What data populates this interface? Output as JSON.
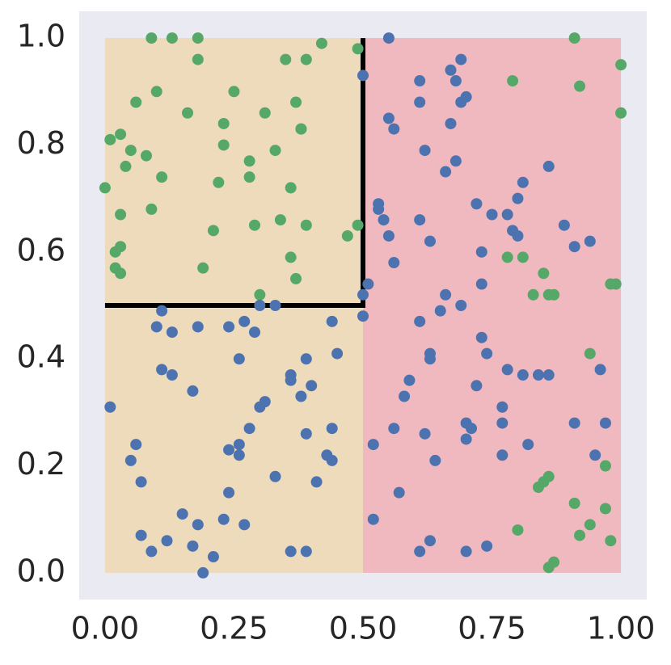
{
  "chart_data": {
    "type": "scatter",
    "xlim": [
      -0.05,
      1.05
    ],
    "ylim": [
      -0.05,
      1.05
    ],
    "xticks": [
      {
        "value": 0,
        "label": "0.00"
      },
      {
        "value": 0.25,
        "label": "0.25"
      },
      {
        "value": 0.5,
        "label": "0.50"
      },
      {
        "value": 0.75,
        "label": "0.75"
      },
      {
        "value": 1,
        "label": "1.00"
      }
    ],
    "yticks": [
      {
        "value": 0,
        "label": "0.0"
      },
      {
        "value": 0.2,
        "label": "0.2"
      },
      {
        "value": 0.4,
        "label": "0.4"
      },
      {
        "value": 0.6,
        "label": "0.6"
      },
      {
        "value": 0.8,
        "label": "0.8"
      },
      {
        "value": 1,
        "label": "1.0"
      }
    ],
    "grid": false,
    "axes_color": "#eaeaf2",
    "regions": [
      {
        "xlim": [
          0,
          0.5
        ],
        "ylim": [
          0,
          1
        ],
        "color": "#eedbbc"
      },
      {
        "xlim": [
          0.5,
          1
        ],
        "ylim": [
          0,
          1
        ],
        "color": "#efb9bf"
      }
    ],
    "boundary": {
      "x": [
        0,
        0.5,
        0.5
      ],
      "y": [
        0.5,
        0.5,
        1
      ],
      "color": "#000000"
    },
    "series": [
      {
        "color": "#55a868",
        "x": [
          0.09,
          0.13,
          0.18,
          0.18,
          0.35,
          0.39,
          0.42,
          0.49,
          0.1,
          0.06,
          0.25,
          0.16,
          0.31,
          0.37,
          0.23,
          0.38,
          0.38,
          0.01,
          0.03,
          0.05,
          0.08,
          0.23,
          0.28,
          0.33,
          0.04,
          0.11,
          0.22,
          0.28,
          0.36,
          0.0,
          0.03,
          0.09,
          0.21,
          0.29,
          0.34,
          0.39,
          0.47,
          0.49,
          0.03,
          0.02,
          0.36,
          0.37,
          0.19,
          0.02,
          0.03,
          0.3,
          0.91,
          1.0,
          0.92,
          1.0,
          0.79,
          0.78,
          0.81,
          0.85,
          0.83,
          0.86,
          0.87,
          0.99,
          0.98,
          0.94,
          0.97,
          0.85,
          0.86,
          0.84,
          0.91,
          0.97,
          0.94,
          0.92,
          0.8,
          0.98,
          0.87,
          0.86
        ],
        "y": [
          1.0,
          1.0,
          1.0,
          0.96,
          0.96,
          0.96,
          0.99,
          0.98,
          0.9,
          0.88,
          0.9,
          0.86,
          0.86,
          0.88,
          0.84,
          0.83,
          0.83,
          0.81,
          0.82,
          0.79,
          0.78,
          0.8,
          0.77,
          0.79,
          0.76,
          0.74,
          0.73,
          0.74,
          0.72,
          0.72,
          0.67,
          0.68,
          0.64,
          0.65,
          0.66,
          0.65,
          0.63,
          0.65,
          0.61,
          0.6,
          0.59,
          0.55,
          0.57,
          0.57,
          0.56,
          0.52,
          1.0,
          0.95,
          0.91,
          0.86,
          0.92,
          0.59,
          0.59,
          0.56,
          0.52,
          0.52,
          0.52,
          0.54,
          0.54,
          0.41,
          0.2,
          0.17,
          0.18,
          0.16,
          0.13,
          0.12,
          0.09,
          0.07,
          0.08,
          0.06,
          0.02,
          0.01
        ]
      },
      {
        "color": "#4c72b0",
        "x": [
          0.55,
          0.5,
          0.69,
          0.67,
          0.61,
          0.68,
          0.7,
          0.69,
          0.61,
          0.55,
          0.56,
          0.67,
          0.62,
          0.68,
          0.66,
          0.86,
          0.81,
          0.8,
          0.72,
          0.75,
          0.78,
          0.53,
          0.53,
          0.54,
          0.61,
          0.55,
          0.63,
          0.79,
          0.8,
          0.89,
          0.91,
          0.94,
          0.73,
          0.56,
          0.51,
          0.5,
          0.73,
          0.66,
          0.69,
          0.65,
          0.5,
          0.61,
          0.73,
          0.63,
          0.63,
          0.74,
          0.78,
          0.81,
          0.84,
          0.86,
          0.96,
          0.59,
          0.58,
          0.72,
          0.77,
          0.77,
          0.7,
          0.71,
          0.91,
          0.97,
          0.56,
          0.62,
          0.7,
          0.82,
          0.52,
          0.77,
          0.95,
          0.64,
          0.57,
          0.52,
          0.63,
          0.61,
          0.7,
          0.74,
          0.11,
          0.1,
          0.13,
          0.18,
          0.24,
          0.27,
          0.29,
          0.3,
          0.33,
          0.44,
          0.45,
          0.39,
          0.26,
          0.11,
          0.13,
          0.36,
          0.36,
          0.4,
          0.17,
          0.38,
          0.31,
          0.3,
          0.01,
          0.28,
          0.44,
          0.39,
          0.06,
          0.26,
          0.24,
          0.43,
          0.05,
          0.26,
          0.44,
          0.33,
          0.07,
          0.41,
          0.24,
          0.15,
          0.23,
          0.18,
          0.27,
          0.07,
          0.12,
          0.17,
          0.09,
          0.21,
          0.36,
          0.39,
          0.19
        ],
        "y": [
          1.0,
          0.93,
          0.96,
          0.94,
          0.92,
          0.92,
          0.89,
          0.88,
          0.88,
          0.85,
          0.83,
          0.84,
          0.79,
          0.77,
          0.75,
          0.76,
          0.73,
          0.7,
          0.69,
          0.67,
          0.67,
          0.69,
          0.68,
          0.66,
          0.66,
          0.63,
          0.62,
          0.64,
          0.63,
          0.65,
          0.61,
          0.62,
          0.6,
          0.58,
          0.54,
          0.52,
          0.54,
          0.52,
          0.5,
          0.49,
          0.48,
          0.47,
          0.44,
          0.41,
          0.4,
          0.41,
          0.38,
          0.37,
          0.37,
          0.37,
          0.38,
          0.36,
          0.33,
          0.35,
          0.31,
          0.28,
          0.28,
          0.27,
          0.28,
          0.28,
          0.27,
          0.26,
          0.25,
          0.24,
          0.24,
          0.22,
          0.22,
          0.21,
          0.15,
          0.1,
          0.06,
          0.04,
          0.04,
          0.05,
          0.49,
          0.46,
          0.45,
          0.46,
          0.46,
          0.47,
          0.45,
          0.5,
          0.5,
          0.47,
          0.41,
          0.4,
          0.4,
          0.38,
          0.37,
          0.37,
          0.36,
          0.35,
          0.34,
          0.33,
          0.32,
          0.31,
          0.31,
          0.27,
          0.27,
          0.26,
          0.24,
          0.24,
          0.23,
          0.22,
          0.21,
          0.22,
          0.21,
          0.18,
          0.17,
          0.17,
          0.15,
          0.11,
          0.1,
          0.09,
          0.09,
          0.07,
          0.06,
          0.05,
          0.04,
          0.03,
          0.04,
          0.04,
          0.0
        ]
      }
    ]
  }
}
